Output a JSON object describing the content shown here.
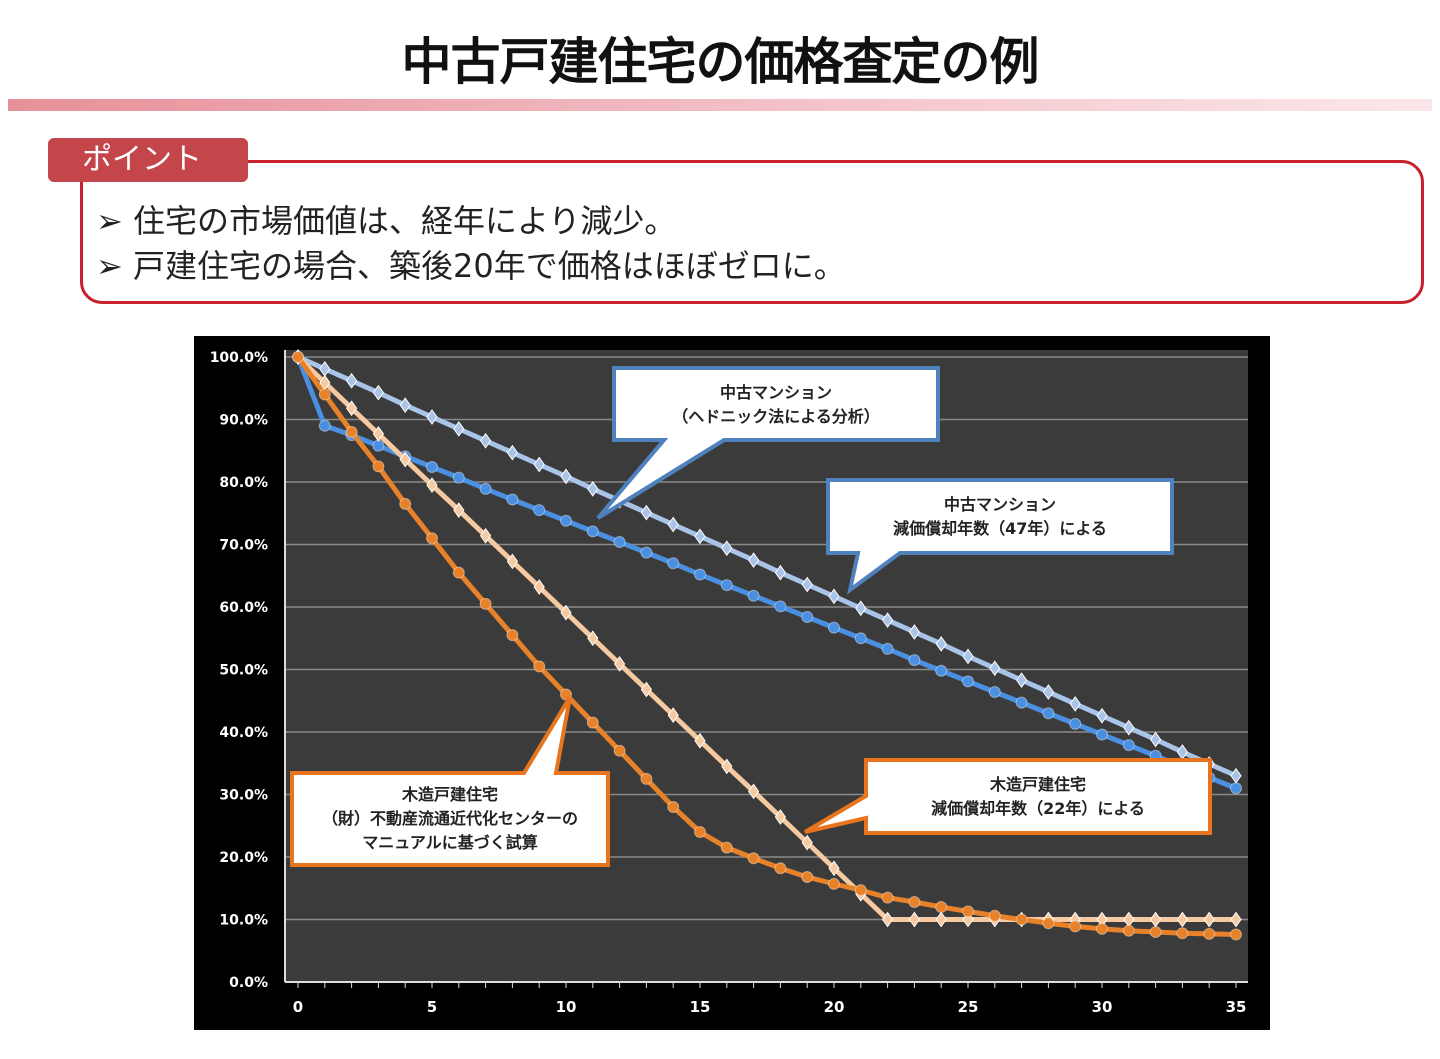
{
  "title": "中古戸建住宅の価格査定の例",
  "point": {
    "label": "ポイント",
    "bullets": [
      "➢ 住宅の市場価値は、経年により減少。",
      "➢ 戸建住宅の場合、築後20年で価格はほぼゼロに。"
    ]
  },
  "chart_data": {
    "type": "line",
    "title": "",
    "xlabel": "",
    "ylabel": "",
    "xlim": [
      0,
      35
    ],
    "ylim": [
      0,
      100
    ],
    "x_ticks": [
      "0",
      "5",
      "10",
      "15",
      "20",
      "25",
      "30",
      "35"
    ],
    "y_ticks": [
      "0.0%",
      "10.0%",
      "20.0%",
      "30.0%",
      "40.0%",
      "50.0%",
      "60.0%",
      "70.0%",
      "80.0%",
      "90.0%",
      "100.0%"
    ],
    "grid": true,
    "x": [
      0,
      1,
      2,
      3,
      4,
      5,
      6,
      7,
      8,
      9,
      10,
      11,
      12,
      13,
      14,
      15,
      16,
      17,
      18,
      19,
      20,
      21,
      22,
      23,
      24,
      25,
      26,
      27,
      28,
      29,
      30,
      31,
      32,
      33,
      34,
      35
    ],
    "series": [
      {
        "name": "中古マンション（ヘドニック法による分析）",
        "color": "#a9c4e8",
        "marker": "diamond",
        "values": [
          100,
          98.1,
          96.2,
          94.3,
          92.3,
          90.4,
          88.5,
          86.6,
          84.7,
          82.8,
          80.9,
          78.9,
          77.0,
          75.1,
          73.2,
          71.3,
          69.4,
          67.5,
          65.5,
          63.6,
          61.7,
          59.8,
          57.9,
          56.0,
          54.1,
          52.1,
          50.2,
          48.3,
          46.4,
          44.5,
          42.6,
          40.7,
          38.8,
          36.8,
          34.9,
          33.0
        ]
      },
      {
        "name": "中古マンション 減価償却年数（47年）による",
        "color": "#4a8fe0",
        "marker": "circle",
        "values": [
          100,
          89,
          87.5,
          85.8,
          84.1,
          82.4,
          80.7,
          78.9,
          77.2,
          75.5,
          73.8,
          72.1,
          70.4,
          68.7,
          67.0,
          65.2,
          63.5,
          61.8,
          60.1,
          58.4,
          56.7,
          55.0,
          53.3,
          51.5,
          49.8,
          48.1,
          46.4,
          44.7,
          43.0,
          41.3,
          39.6,
          37.9,
          36.2,
          34.4,
          32.7,
          31.0
        ]
      },
      {
        "name": "木造戸建住宅 減価償却年数（22年）による",
        "color": "#f6c9a0",
        "marker": "diamond",
        "values": [
          100,
          95.9,
          91.8,
          87.7,
          83.6,
          79.5,
          75.5,
          71.4,
          67.3,
          63.2,
          59.1,
          55.0,
          50.9,
          46.8,
          42.7,
          38.6,
          34.5,
          30.5,
          26.4,
          22.3,
          18.2,
          14.1,
          10,
          10,
          10,
          10,
          10,
          10,
          10,
          10,
          10,
          10,
          10,
          10,
          10,
          10
        ]
      },
      {
        "name": "木造戸建住宅 （財）不動産流通近代化センターのマニュアルに基づく試算",
        "color": "#e8822a",
        "marker": "circle",
        "values": [
          100,
          94,
          88,
          82.5,
          76.5,
          71,
          65.5,
          60.5,
          55.5,
          50.5,
          46,
          41.5,
          37,
          32.5,
          28,
          24,
          21.5,
          19.8,
          18.2,
          16.8,
          15.7,
          14.7,
          13.5,
          12.8,
          12,
          11.3,
          10.6,
          10,
          9.4,
          8.9,
          8.5,
          8.2,
          8,
          7.8,
          7.7,
          7.6
        ]
      }
    ],
    "annotations": [
      {
        "lines": [
          "中古マンション",
          "（ヘドニック法による分析）"
        ],
        "color": "#4f81bd"
      },
      {
        "lines": [
          "中古マンション",
          "減価償却年数（47年）による"
        ],
        "color": "#4f81bd"
      },
      {
        "lines": [
          "木造戸建住宅",
          "（財）不動産流通近代化センターの",
          "マニュアルに基づく試算"
        ],
        "color": "#e8741e"
      },
      {
        "lines": [
          "木造戸建住宅",
          "減価償却年数（22年）による"
        ],
        "color": "#e8741e"
      }
    ]
  }
}
